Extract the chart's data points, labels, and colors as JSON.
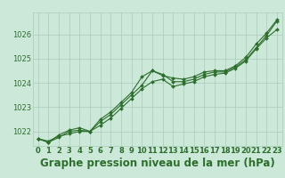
{
  "title": "Graphe pression niveau de la mer (hPa)",
  "background_color": "#cce8d8",
  "grid_color": "#aaccbb",
  "line_color": "#2d6e2d",
  "y_ticks": [
    1022,
    1023,
    1024,
    1025,
    1026
  ],
  "ylim": [
    1021.4,
    1026.9
  ],
  "xlim": [
    -0.5,
    23.5
  ],
  "hours": [
    0,
    1,
    2,
    3,
    4,
    5,
    6,
    7,
    8,
    9,
    10,
    11,
    12,
    13,
    14,
    15,
    16,
    17,
    18,
    19,
    20,
    21,
    22,
    23
  ],
  "line1": [
    1021.7,
    1021.6,
    1021.8,
    1021.9,
    1022.0,
    1022.0,
    1022.4,
    1022.7,
    1023.1,
    1023.5,
    1023.9,
    1024.5,
    1024.35,
    1024.05,
    1024.05,
    1024.15,
    1024.35,
    1024.45,
    1024.45,
    1024.65,
    1024.95,
    1025.45,
    1025.95,
    1026.55
  ],
  "line2": [
    1021.7,
    1021.55,
    1021.75,
    1022.0,
    1022.05,
    1022.0,
    1022.25,
    1022.55,
    1022.95,
    1023.35,
    1023.75,
    1024.05,
    1024.15,
    1023.85,
    1023.95,
    1024.05,
    1024.25,
    1024.35,
    1024.4,
    1024.6,
    1024.9,
    1025.4,
    1025.85,
    1026.2
  ],
  "line3": [
    1021.7,
    1021.55,
    1021.85,
    1022.05,
    1022.15,
    1022.0,
    1022.5,
    1022.8,
    1023.2,
    1023.6,
    1024.25,
    1024.5,
    1024.3,
    1024.2,
    1024.15,
    1024.25,
    1024.45,
    1024.5,
    1024.5,
    1024.7,
    1025.05,
    1025.6,
    1026.05,
    1026.6
  ],
  "markersize": 2.0,
  "linewidth": 0.8,
  "title_fontsize": 8.5,
  "tick_fontsize": 6.0,
  "ylabel_fontsize": 6.0
}
